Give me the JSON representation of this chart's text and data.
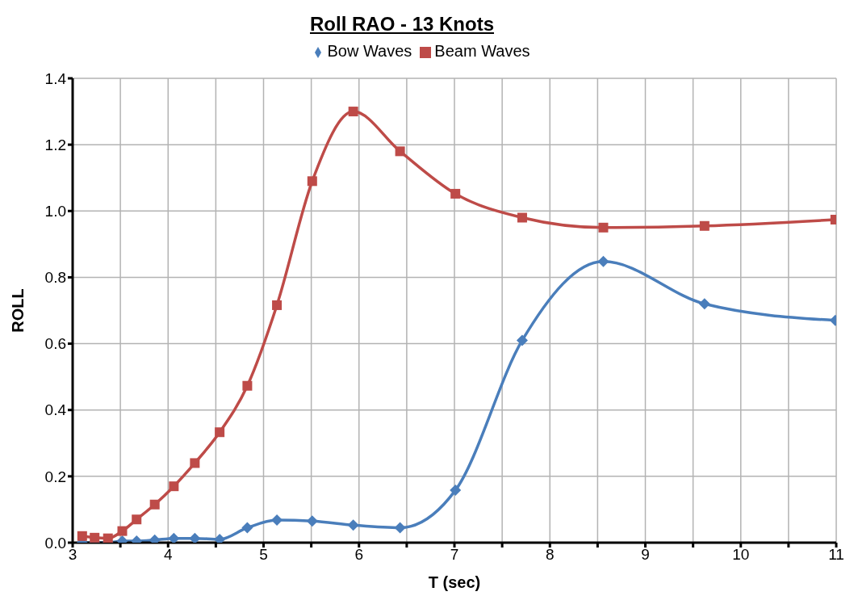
{
  "chart_data": {
    "type": "line",
    "title": "Roll RAO - 13 Knots",
    "xlabel": "T (sec)",
    "ylabel": "ROLL",
    "x": [
      3.1,
      3.23,
      3.37,
      3.52,
      3.67,
      3.86,
      4.06,
      4.28,
      4.54,
      4.83,
      5.14,
      5.51,
      5.94,
      6.43,
      7.01,
      7.71,
      8.56,
      9.62,
      10.99
    ],
    "series": [
      {
        "name": "Bow Waves",
        "color": "#4a7ebb",
        "marker": "diamond",
        "values": [
          0.0,
          0.0,
          0.0,
          0.005,
          0.005,
          0.008,
          0.013,
          0.013,
          0.01,
          0.045,
          0.068,
          0.065,
          0.053,
          0.045,
          0.158,
          0.61,
          0.848,
          0.72,
          0.67
        ]
      },
      {
        "name": "Beam Waves",
        "color": "#be4b48",
        "marker": "square",
        "values": [
          0.02,
          0.015,
          0.013,
          0.035,
          0.07,
          0.115,
          0.17,
          0.24,
          0.333,
          0.473,
          0.716,
          1.09,
          1.3,
          1.18,
          1.052,
          0.98,
          0.95,
          0.955,
          0.974
        ]
      }
    ],
    "xlim": [
      3,
      11
    ],
    "xticks": [
      3,
      {
        "value": 3.5,
        "label": null
      },
      4,
      {
        "value": 4.5,
        "label": null
      },
      5,
      {
        "value": 5.5,
        "label": null
      },
      6,
      {
        "value": 6.5,
        "label": null
      },
      7,
      {
        "value": 7.5,
        "label": null
      },
      8,
      {
        "value": 8.5,
        "label": null
      },
      9,
      {
        "value": 9.5,
        "label": null
      },
      10,
      {
        "value": 10.5,
        "label": null
      },
      11
    ],
    "ylim": [
      0,
      1.4
    ],
    "yticks": [
      {
        "value": 0,
        "label": "0.0"
      },
      {
        "value": 0.2,
        "label": "0.2"
      },
      {
        "value": 0.4,
        "label": "0.4"
      },
      {
        "value": 0.6,
        "label": "0.6"
      },
      {
        "value": 0.8,
        "label": "0.8"
      },
      {
        "value": 1,
        "label": "1.0"
      },
      {
        "value": 1.2,
        "label": "1.2"
      },
      {
        "value": 1.4,
        "label": "1.4"
      }
    ],
    "grid": true,
    "legend": "top",
    "line_style": "solid"
  }
}
